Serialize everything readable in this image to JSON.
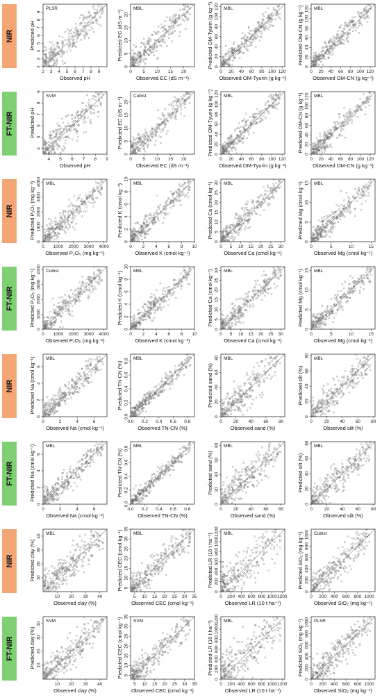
{
  "colors": {
    "nir_label": "#f4a775",
    "ftnir_label": "#7fcf73",
    "point": "#6a6a6a",
    "line": "#9a9a9a",
    "frame": "#333333"
  },
  "row_labels": [
    "NIR",
    "FT-NIR",
    "NIR",
    "FT-NIR",
    "NIR",
    "FT-NIR",
    "NIR",
    "FT-NIR"
  ],
  "chart_data": [
    {
      "type": "scatter",
      "title": "PLSR",
      "xlabel": "Observed pH",
      "ylabel": "Predicted pH",
      "xlim": [
        2,
        10
      ],
      "ylim": [
        2,
        10
      ],
      "xticks": [
        "2",
        "3",
        "4",
        "5",
        "6",
        "7",
        "8",
        "9"
      ],
      "yticks": [
        "2",
        "3",
        "4",
        "5",
        "6",
        "7",
        "8",
        "9"
      ],
      "n": 300,
      "spread": 0.11
    },
    {
      "type": "scatter",
      "title": "MBL",
      "xlabel": "Observed EC (dS m⁻¹)",
      "ylabel": "Predicted EC (dS m⁻¹)",
      "xlim": [
        0,
        24
      ],
      "ylim": [
        0,
        24
      ],
      "xticks": [
        "0",
        "5",
        "10",
        "15",
        "20"
      ],
      "yticks": [
        "0",
        "5",
        "10",
        "15",
        "20"
      ],
      "n": 300,
      "spread": 0.1
    },
    {
      "type": "scatter",
      "title": "MBL",
      "xlabel": "Observed OM-Tyurin (g kg⁻¹)",
      "ylabel": "Predicted OM-Tyurin (g kg⁻¹)",
      "xlim": [
        0,
        125
      ],
      "ylim": [
        0,
        125
      ],
      "xticks": [
        "0",
        "20",
        "40",
        "60",
        "80",
        "100",
        "120"
      ],
      "yticks": [
        "0",
        "20",
        "40",
        "60",
        "80",
        "100",
        "120"
      ],
      "n": 300,
      "spread": 0.08
    },
    {
      "type": "scatter",
      "title": "MBL",
      "xlabel": "Observed OM-CN (g kg⁻¹)",
      "ylabel": "Predicted OM-CN (g kg⁻¹)",
      "xlim": [
        0,
        130
      ],
      "ylim": [
        0,
        130
      ],
      "xticks": [
        "0",
        "20",
        "40",
        "60",
        "80",
        "100",
        "120"
      ],
      "yticks": [
        "0",
        "20",
        "40",
        "60",
        "80",
        "100",
        "120"
      ],
      "n": 300,
      "spread": 0.08
    },
    {
      "type": "scatter",
      "title": "SVM",
      "xlabel": "Observed pH",
      "ylabel": "Predicted pH",
      "xlim": [
        3.5,
        9
      ],
      "ylim": [
        3.5,
        9
      ],
      "xticks": [
        "4",
        "5",
        "6",
        "7",
        "8",
        "9"
      ],
      "yticks": [
        "4",
        "5",
        "6",
        "7",
        "8",
        "9"
      ],
      "n": 300,
      "spread": 0.12
    },
    {
      "type": "scatter",
      "title": "Cubist",
      "xlabel": "Observed EC (dS m⁻¹)",
      "ylabel": "Predicted EC (dS m⁻¹)",
      "xlim": [
        0,
        24
      ],
      "ylim": [
        0,
        24
      ],
      "xticks": [
        "0",
        "5",
        "10",
        "15",
        "20"
      ],
      "yticks": [
        "0",
        "5",
        "10",
        "15",
        "20"
      ],
      "n": 300,
      "spread": 0.1
    },
    {
      "type": "scatter",
      "title": "MBL",
      "xlabel": "Observed OM-Tyurin (g kg⁻¹)",
      "ylabel": "Predicted OM-Tyurin (g kg⁻¹)",
      "xlim": [
        0,
        125
      ],
      "ylim": [
        0,
        125
      ],
      "xticks": [
        "0",
        "20",
        "40",
        "60",
        "80",
        "100",
        "120"
      ],
      "yticks": [
        "0",
        "20",
        "40",
        "60",
        "80",
        "100",
        "120"
      ],
      "n": 300,
      "spread": 0.08
    },
    {
      "type": "scatter",
      "title": "MBL",
      "xlabel": "Observed OM-CN (g kg⁻¹)",
      "ylabel": "Predicted OM-CN (g kg⁻¹)",
      "xlim": [
        0,
        130
      ],
      "ylim": [
        0,
        130
      ],
      "xticks": [
        "0",
        "20",
        "40",
        "60",
        "80",
        "100",
        "120"
      ],
      "yticks": [
        "0",
        "20",
        "40",
        "60",
        "80",
        "100",
        "120"
      ],
      "n": 300,
      "spread": 0.08
    },
    {
      "type": "scatter",
      "title": "MBL",
      "xlabel": "Observed P₂O₅ (mg kg⁻¹)",
      "ylabel": "Predicted P₂O₅ (mg kg⁻¹)",
      "xlim": [
        0,
        4200
      ],
      "ylim": [
        0,
        4200
      ],
      "xticks": [
        "0",
        "1000",
        "2000",
        "3000",
        "4000"
      ],
      "yticks": [
        "0",
        "1000",
        "2000",
        "3000",
        "4000"
      ],
      "n": 300,
      "spread": 0.1
    },
    {
      "type": "scatter",
      "title": "MBL",
      "xlabel": "Observed K (cmol kg⁻¹)",
      "ylabel": "Predicted K (cmol kg⁻¹)",
      "xlim": [
        0,
        10
      ],
      "ylim": [
        0,
        10
      ],
      "xticks": [
        "0",
        "2",
        "4",
        "6",
        "8",
        "10"
      ],
      "yticks": [
        "0",
        "2",
        "4",
        "6",
        "8",
        "10"
      ],
      "n": 300,
      "spread": 0.09
    },
    {
      "type": "scatter",
      "title": "MBL",
      "xlabel": "Observed Ca (cmol kg⁻¹)",
      "ylabel": "Predicted Ca (cmol kg⁻¹)",
      "xlim": [
        0,
        32
      ],
      "ylim": [
        0,
        32
      ],
      "xticks": [
        "0",
        "5",
        "10",
        "15",
        "20",
        "25",
        "30"
      ],
      "yticks": [
        "0",
        "5",
        "10",
        "15",
        "20",
        "25",
        "30"
      ],
      "n": 300,
      "spread": 0.09
    },
    {
      "type": "scatter",
      "title": "MBL",
      "xlabel": "Observed Mg (cmol kg⁻¹)",
      "ylabel": "Predicted Mg (cmol kg⁻¹)",
      "xlim": [
        0,
        16
      ],
      "ylim": [
        0,
        16
      ],
      "xticks": [
        "0",
        "5",
        "10",
        "15"
      ],
      "yticks": [
        "0",
        "5",
        "10",
        "15"
      ],
      "n": 300,
      "spread": 0.09
    },
    {
      "type": "scatter",
      "title": "Cubist",
      "xlabel": "Observed P₂O₅ (mg kg⁻¹)",
      "ylabel": "Predicted P₂O₅ (mg kg⁻¹)",
      "xlim": [
        0,
        4200
      ],
      "ylim": [
        0,
        4200
      ],
      "xticks": [
        "0",
        "1000",
        "2000",
        "3000",
        "4000"
      ],
      "yticks": [
        "0",
        "1000",
        "2000",
        "3000",
        "4000"
      ],
      "n": 300,
      "spread": 0.1
    },
    {
      "type": "scatter",
      "title": "MBL",
      "xlabel": "Observed K (cmol kg⁻¹)",
      "ylabel": "Predicted K (cmol kg⁻¹)",
      "xlim": [
        0,
        10
      ],
      "ylim": [
        0,
        10
      ],
      "xticks": [
        "0",
        "2",
        "4",
        "6",
        "8",
        "10"
      ],
      "yticks": [
        "0",
        "2",
        "4",
        "6",
        "8",
        "10"
      ],
      "n": 300,
      "spread": 0.09
    },
    {
      "type": "scatter",
      "title": "MBL",
      "xlabel": "Observed Ca (cmol kg⁻¹)",
      "ylabel": "Predicted Ca (cmol kg⁻¹)",
      "xlim": [
        0,
        32
      ],
      "ylim": [
        0,
        32
      ],
      "xticks": [
        "0",
        "5",
        "10",
        "15",
        "20",
        "25",
        "30"
      ],
      "yticks": [
        "0",
        "5",
        "10",
        "15",
        "20",
        "25",
        "30"
      ],
      "n": 300,
      "spread": 0.09
    },
    {
      "type": "scatter",
      "title": "MBL",
      "xlabel": "Observed Mg (cmol kg⁻¹)",
      "ylabel": "Predicted Mg (cmol kg⁻¹)",
      "xlim": [
        0,
        16
      ],
      "ylim": [
        0,
        16
      ],
      "xticks": [
        "0",
        "5",
        "10",
        "15"
      ],
      "yticks": [
        "0",
        "5",
        "10",
        "15"
      ],
      "n": 300,
      "spread": 0.09
    },
    {
      "type": "scatter",
      "title": "MBL",
      "xlabel": "Observed Na (cmol kg⁻¹)",
      "ylabel": "Predicted Na (cmol kg⁻¹)",
      "xlim": [
        0,
        7.5
      ],
      "ylim": [
        0,
        7.5
      ],
      "xticks": [
        "0",
        "2",
        "4",
        "6"
      ],
      "yticks": [
        "0",
        "2",
        "4",
        "6"
      ],
      "n": 300,
      "spread": 0.09
    },
    {
      "type": "scatter",
      "title": "MBL",
      "xlabel": "Observed TN-CN (%)",
      "ylabel": "Predicted TN-CN (%)",
      "xlim": [
        0,
        0.9
      ],
      "ylim": [
        0,
        0.9
      ],
      "xticks": [
        "0.0",
        "0.2",
        "0.4",
        "0.6",
        "0.8"
      ],
      "yticks": [
        "0.0",
        "0.2",
        "0.4",
        "0.6",
        "0.8"
      ],
      "n": 300,
      "spread": 0.06
    },
    {
      "type": "scatter",
      "title": "MBL",
      "xlabel": "Observed sand (%)",
      "ylabel": "Predicted sand (%)",
      "xlim": [
        0,
        85
      ],
      "ylim": [
        0,
        85
      ],
      "xticks": [
        "0",
        "20",
        "40",
        "60",
        "80"
      ],
      "yticks": [
        "0",
        "20",
        "40",
        "60",
        "80"
      ],
      "n": 300,
      "spread": 0.13
    },
    {
      "type": "scatter",
      "title": "MBL",
      "xlabel": "Observed silt (%)",
      "ylabel": "Predicted silt (%)",
      "xlim": [
        0,
        82
      ],
      "ylim": [
        0,
        82
      ],
      "xticks": [
        "0",
        "20",
        "40",
        "60",
        "80"
      ],
      "yticks": [
        "0",
        "20",
        "40",
        "60",
        "80"
      ],
      "n": 300,
      "spread": 0.12
    },
    {
      "type": "scatter",
      "title": "MBL",
      "xlabel": "Observed Na (cmol kg⁻¹)",
      "ylabel": "Predicted Na (cmol kg⁻¹)",
      "xlim": [
        0,
        7.5
      ],
      "ylim": [
        0,
        7.5
      ],
      "xticks": [
        "0",
        "2",
        "4",
        "6"
      ],
      "yticks": [
        "0",
        "2",
        "4",
        "6"
      ],
      "n": 300,
      "spread": 0.09
    },
    {
      "type": "scatter",
      "title": "MBL",
      "xlabel": "Observed TN-CN (%)",
      "ylabel": "Predicted TN-CN (%)",
      "xlim": [
        0,
        0.9
      ],
      "ylim": [
        0,
        0.9
      ],
      "xticks": [
        "0.0",
        "0.2",
        "0.4",
        "0.6",
        "0.8"
      ],
      "yticks": [
        "0.0",
        "0.2",
        "0.4",
        "0.6",
        "0.8"
      ],
      "n": 300,
      "spread": 0.06
    },
    {
      "type": "scatter",
      "title": "MBL",
      "xlabel": "Observed sand (%)",
      "ylabel": "Predicted sand (%)",
      "xlim": [
        0,
        85
      ],
      "ylim": [
        0,
        85
      ],
      "xticks": [
        "0",
        "20",
        "40",
        "60",
        "80"
      ],
      "yticks": [
        "0",
        "20",
        "40",
        "60",
        "80"
      ],
      "n": 300,
      "spread": 0.13
    },
    {
      "type": "scatter",
      "title": "MBL",
      "xlabel": "Observed silt (%)",
      "ylabel": "Predicted silt (%)",
      "xlim": [
        0,
        82
      ],
      "ylim": [
        0,
        82
      ],
      "xticks": [
        "0",
        "20",
        "40",
        "60",
        "80"
      ],
      "yticks": [
        "0",
        "20",
        "40",
        "60",
        "80"
      ],
      "n": 300,
      "spread": 0.12
    },
    {
      "type": "scatter",
      "title": "MBL",
      "xlabel": "Observed clay (%)",
      "ylabel": "Predicted clay (%)",
      "xlim": [
        0,
        45
      ],
      "ylim": [
        0,
        45
      ],
      "xticks": [
        "10",
        "20",
        "30",
        "40"
      ],
      "yticks": [
        "10",
        "20",
        "30",
        "40"
      ],
      "n": 300,
      "spread": 0.12
    },
    {
      "type": "scatter",
      "title": "MBL",
      "xlabel": "Observed CEC (cmol kg⁻¹)",
      "ylabel": "Predicted CEC (cmol kg⁻¹)",
      "xlim": [
        3,
        35
      ],
      "ylim": [
        3,
        35
      ],
      "xticks": [
        "5",
        "10",
        "15",
        "20",
        "25",
        "30",
        "35"
      ],
      "yticks": [
        "5",
        "10",
        "15",
        "20",
        "25",
        "30",
        "35"
      ],
      "n": 300,
      "spread": 0.1
    },
    {
      "type": "scatter",
      "title": "MBL",
      "xlabel": "Observed LR (10 t ha⁻¹)",
      "ylabel": "Predicted LR (10 t ha⁻¹)",
      "xlim": [
        0,
        1250
      ],
      "ylim": [
        0,
        1250
      ],
      "xticks": [
        "0",
        "200",
        "400",
        "600",
        "800",
        "1000",
        "1200"
      ],
      "yticks": [
        "0",
        "200",
        "400",
        "600",
        "800",
        "1000",
        "1200"
      ],
      "n": 300,
      "spread": 0.18
    },
    {
      "type": "scatter",
      "title": "Cubist",
      "xlabel": "Observed SiO₂ (mg kg⁻¹)",
      "ylabel": "Predicted SiO₂ (mg kg⁻¹)",
      "xlim": [
        0,
        1100
      ],
      "ylim": [
        0,
        1100
      ],
      "xticks": [
        "0",
        "200",
        "400",
        "600",
        "800",
        "1000"
      ],
      "yticks": [
        "0",
        "200",
        "400",
        "600",
        "800",
        "1000"
      ],
      "n": 300,
      "spread": 0.12
    },
    {
      "type": "scatter",
      "title": "SVM",
      "xlabel": "Observed clay (%)",
      "ylabel": "Predicted clay (%)",
      "xlim": [
        0,
        45
      ],
      "ylim": [
        0,
        45
      ],
      "xticks": [
        "10",
        "20",
        "30",
        "40"
      ],
      "yticks": [
        "10",
        "20",
        "30",
        "40"
      ],
      "n": 300,
      "spread": 0.12
    },
    {
      "type": "scatter",
      "title": "SVM",
      "xlabel": "Observed CEC (cmol kg⁻¹)",
      "ylabel": "Predicted CEC (cmol kg⁻¹)",
      "xlim": [
        3,
        35
      ],
      "ylim": [
        3,
        35
      ],
      "xticks": [
        "5",
        "10",
        "15",
        "20",
        "25",
        "30",
        "35"
      ],
      "yticks": [
        "5",
        "10",
        "15",
        "20",
        "25",
        "30",
        "35"
      ],
      "n": 300,
      "spread": 0.1
    },
    {
      "type": "scatter",
      "title": "MBL",
      "xlabel": "Observed LR (10 t ha⁻¹)",
      "ylabel": "Predicted LR (10 t ha⁻¹)",
      "xlim": [
        0,
        1250
      ],
      "ylim": [
        0,
        1250
      ],
      "xticks": [
        "0",
        "200",
        "400",
        "600",
        "800",
        "1000",
        "1200"
      ],
      "yticks": [
        "0",
        "200",
        "400",
        "600",
        "800",
        "1000",
        "1200"
      ],
      "n": 300,
      "spread": 0.18
    },
    {
      "type": "scatter",
      "title": "PLSR",
      "xlabel": "Observed SiO₂ (mg kg⁻¹)",
      "ylabel": "Predicted SiO₂ (mg kg⁻¹)",
      "xlim": [
        0,
        1100
      ],
      "ylim": [
        0,
        1100
      ],
      "xticks": [
        "0",
        "200",
        "400",
        "600",
        "800",
        "1000"
      ],
      "yticks": [
        "0",
        "200",
        "400",
        "600",
        "800",
        "1000"
      ],
      "n": 300,
      "spread": 0.12
    }
  ]
}
